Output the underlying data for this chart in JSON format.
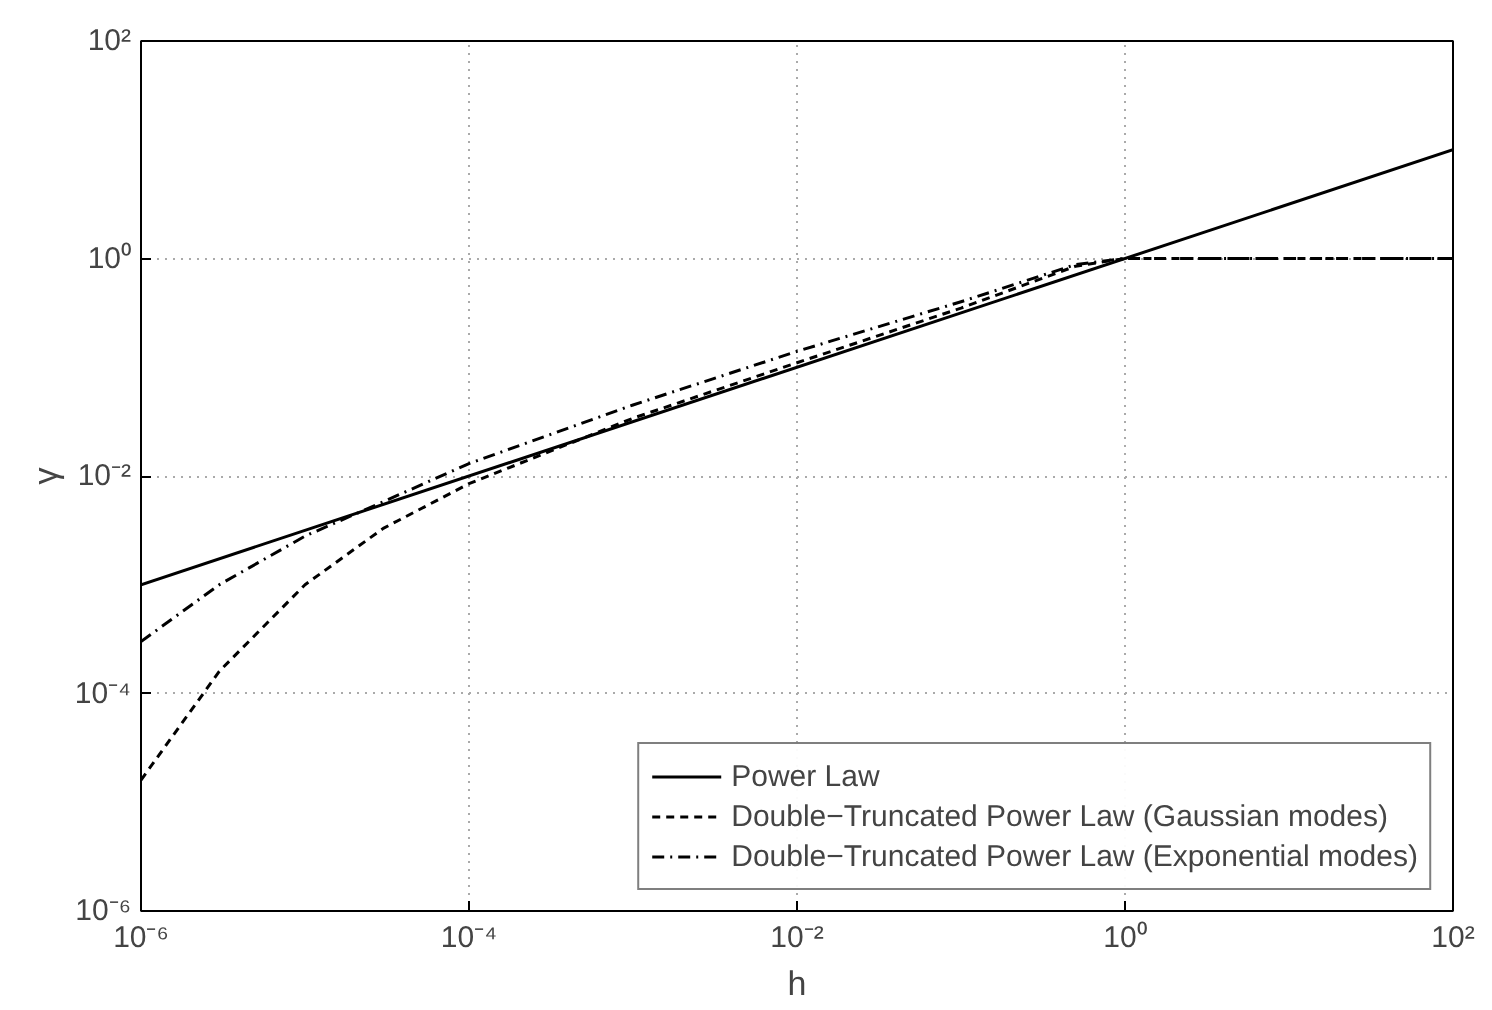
{
  "chart_data": {
    "type": "line",
    "xlabel": "h",
    "ylabel": "γ",
    "log": "xy",
    "grid": true,
    "legend": "bottom right",
    "xlim": [
      1e-06,
      100
    ],
    "ylim": [
      1e-06,
      100
    ],
    "xticks": [
      {
        "value": 1e-06,
        "label": "10⁻⁶"
      },
      {
        "value": 0.0001,
        "label": "10⁻⁴"
      },
      {
        "value": 0.01,
        "label": "10⁻²"
      },
      {
        "value": 1,
        "label": "10⁰"
      },
      {
        "value": 100,
        "label": "10²"
      }
    ],
    "yticks": [
      {
        "value": 1e-06,
        "label": "10⁻⁶"
      },
      {
        "value": 0.0001,
        "label": "10⁻⁴"
      },
      {
        "value": 0.01,
        "label": "10⁻²"
      },
      {
        "value": 1,
        "label": "10⁰"
      },
      {
        "value": 100,
        "label": "10²"
      }
    ],
    "series": [
      {
        "name": "Power Law",
        "color": "#000000",
        "line_style": "solid",
        "x": [
          1e-06,
          100
        ],
        "values": [
          0.001,
          10
        ]
      },
      {
        "name": "Double−Truncated Power Law (Gaussian modes)",
        "color": "#000000",
        "line_style": "dashed",
        "x": [
          1e-06,
          3e-06,
          1e-05,
          3e-05,
          0.0001,
          0.001,
          0.01,
          0.1,
          0.5,
          1,
          10,
          100
        ],
        "values": [
          1.6e-05,
          0.00016,
          0.001,
          0.0033,
          0.0085,
          0.034,
          0.11,
          0.35,
          0.85,
          1,
          1,
          1
        ]
      },
      {
        "name": "Double−Truncated Power Law (Exponential modes)",
        "color": "#000000",
        "line_style": "dashdot",
        "x": [
          1e-06,
          3e-06,
          1e-05,
          3e-05,
          0.0001,
          0.001,
          0.01,
          0.1,
          0.5,
          1,
          10,
          100
        ],
        "values": [
          0.0003,
          0.001,
          0.0028,
          0.0058,
          0.013,
          0.045,
          0.14,
          0.4,
          0.88,
          1,
          1,
          1
        ]
      }
    ]
  }
}
